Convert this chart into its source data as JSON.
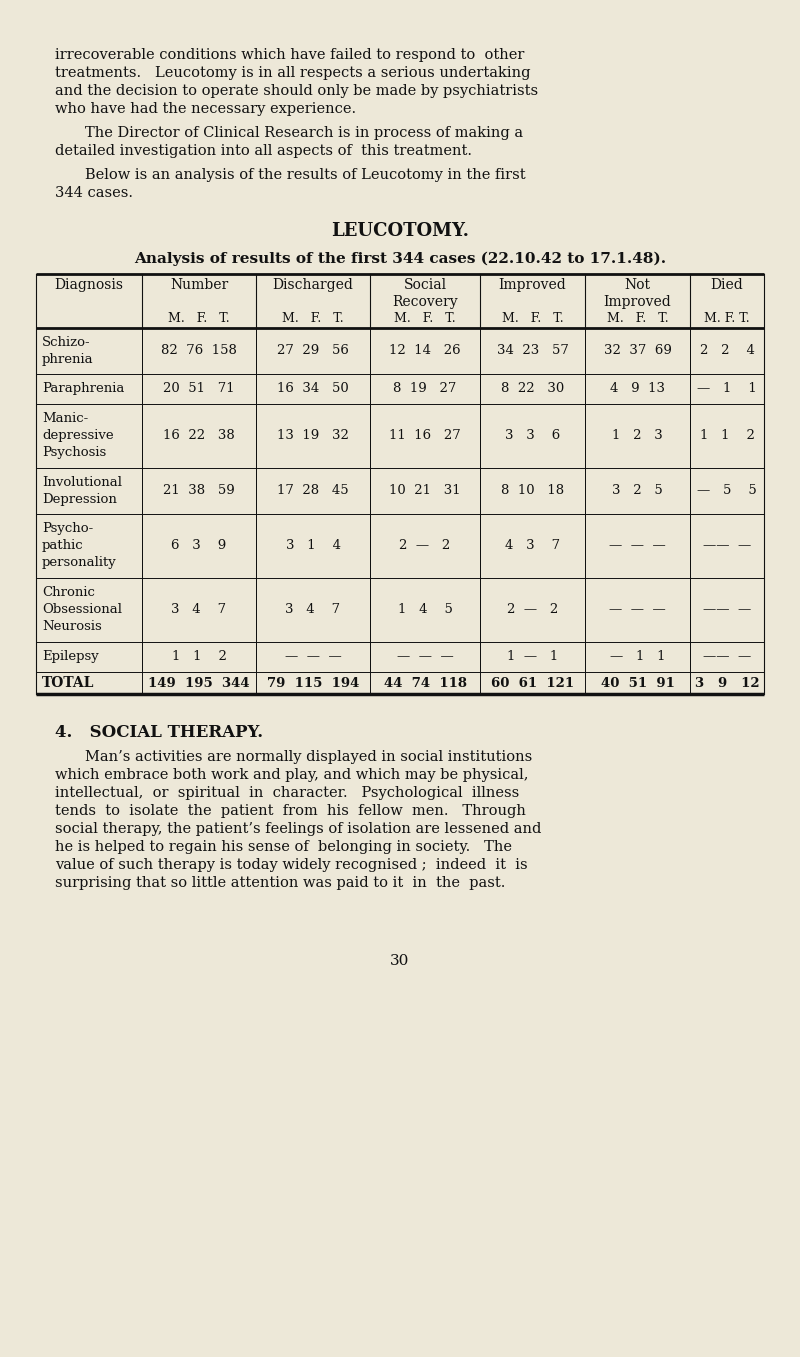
{
  "bg_color": "#ede8d8",
  "text_color": "#1a1a1a",
  "page_width": 8.0,
  "page_height": 13.57,
  "intro_text": "irrecoverable conditions which have failed to respond to  other treatments.   Leucotomy is in all respects a serious undertaking and the decision to operate should only be made by psychiatrists who have had the necessary experience.",
  "para2_text": "The Director of Clinical Research is in process of making a detailed investigation into all aspects of  this treatment.",
  "para3_text": "Below is an analysis of the results of Leucotomy in the first 344 cases.",
  "section_title": "LEUCOTOMY.",
  "table_title": "Analysis of results of the first 344 cases (22.10.42 to 17.1.48).",
  "col_headers_top": [
    "Diagnosis",
    "Number",
    "Discharged",
    "Social\nRecovery",
    "Improved",
    "Not\nImproved",
    "Died"
  ],
  "col_headers_sub": [
    "",
    "M.   F.   T.",
    "M.   F.   T.",
    "M.   F.   T.",
    "M.   F.   T.",
    "M.   F.   T.",
    "M. F. T."
  ],
  "rows": [
    {
      "diagnosis": "Schizo-\nphrenia",
      "number": "82  76  158",
      "discharged": "27  29   56",
      "social": "12  14   26",
      "improved": "34  23   57",
      "not_improved": "32  37  69",
      "died": "2  2   4"
    },
    {
      "diagnosis": "Paraphrenia",
      "number": "20  51   71",
      "discharged": "16  34   50",
      "social": "8  19   27",
      "improved": "8  22   30",
      "not_improved": "4   9  13",
      "died": "—  1   1"
    },
    {
      "diagnosis": "Manic-\ndepressive\nPsychosis",
      "number": "16  22   38",
      "discharged": "13  19   32",
      "social": "11  16   27",
      "improved": "3   3    6",
      "not_improved": "1   2   3",
      "died": "1  1   2"
    },
    {
      "diagnosis": "Involutional\nDepression",
      "number": "21  38   59",
      "discharged": "17  28   45",
      "social": "10  21   31",
      "improved": "8  10   18",
      "not_improved": "3   2   5",
      "died": "—  5   5"
    },
    {
      "diagnosis": "Psycho-\npathic\npersonality",
      "number": "6   3    9",
      "discharged": "3   1    4",
      "social": "2  —   2",
      "improved": "4   3    7",
      "not_improved": "—  —  —",
      "died": "——  —"
    },
    {
      "diagnosis": "Chronic\nObsessional\nNeurosis",
      "number": "3   4    7",
      "discharged": "3   4    7",
      "social": "1   4    5",
      "improved": "2  —   2",
      "not_improved": "—  —  —",
      "died": "——  —"
    },
    {
      "diagnosis": "Epilepsy",
      "number": "1   1    2",
      "discharged": "—  —  —",
      "social": "—  —  —",
      "improved": "1  —   1",
      "not_improved": "—  1   1",
      "died": "——  —"
    },
    {
      "diagnosis": "TOTAL",
      "number": "149  195  344",
      "discharged": "79  115  194",
      "social": "44  74  118",
      "improved": "60  61  121",
      "not_improved": "40  51  91",
      "died": "3  9  12"
    }
  ],
  "section4_title": "4.   SOCIAL THERAPY.",
  "section4_para": "Man’s activities are normally displayed in social institutions which embrace both work and play, and which may be physical, intellectual,  or  spiritual  in  character.   Psychological  illness tends  to  isolate  the  patient  from  his  fellow  men.   Through social therapy, the patient’s feelings of isolation are lessened and he is helped to regain his sense of  belonging in society.   The value of such therapy is today widely recognised ;  indeed  it  is surprising that so little attention was paid to it  in  the  past.",
  "page_number": "30"
}
